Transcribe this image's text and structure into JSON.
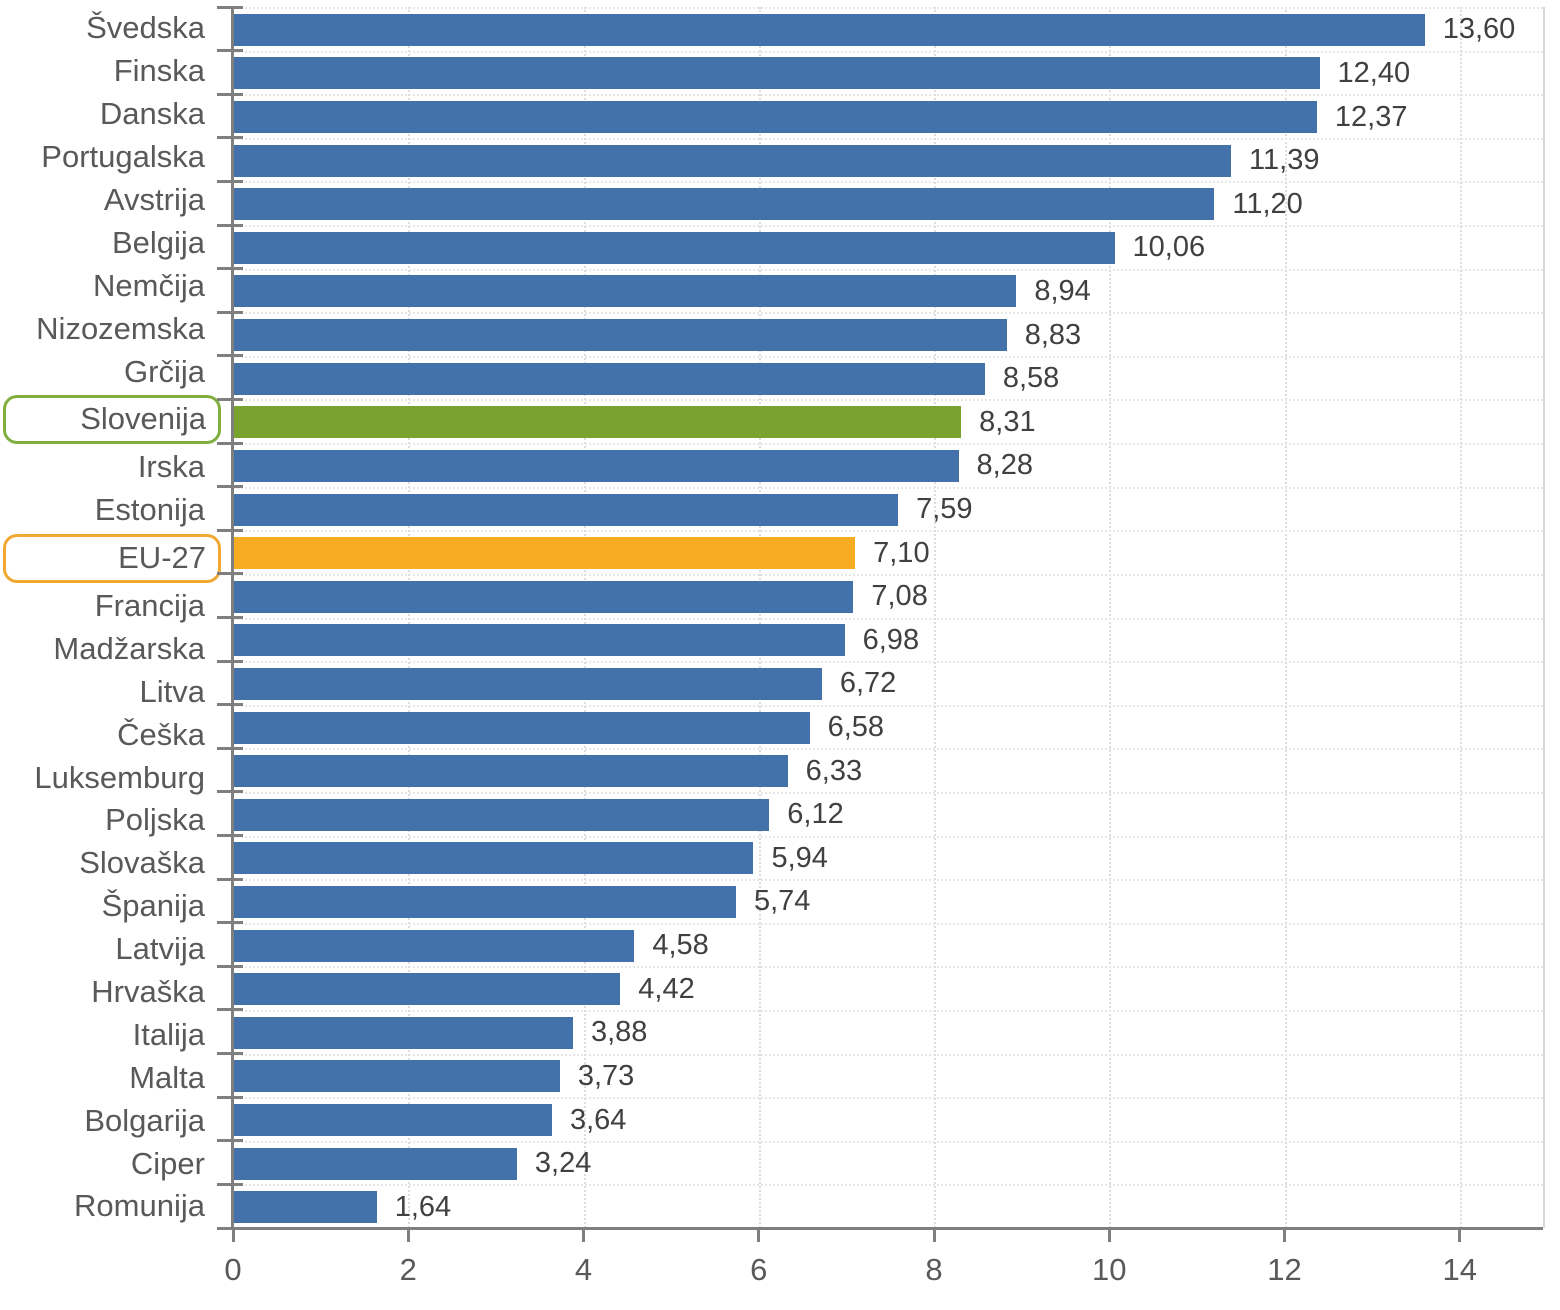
{
  "chart_data": {
    "type": "bar",
    "orientation": "horizontal",
    "title": "",
    "xlabel": "",
    "ylabel": "",
    "categories": [
      "Švedska",
      "Finska",
      "Danska",
      "Portugalska",
      "Avstrija",
      "Belgija",
      "Nemčija",
      "Nizozemska",
      "Grčija",
      "Slovenija",
      "Irska",
      "Estonija",
      "EU-27",
      "Francija",
      "Madžarska",
      "Litva",
      "Češka",
      "Luksemburg",
      "Poljska",
      "Slovaška",
      "Španija",
      "Latvija",
      "Hrvaška",
      "Italija",
      "Malta",
      "Bolgarija",
      "Ciper",
      "Romunija"
    ],
    "values": [
      13.6,
      12.4,
      12.37,
      11.39,
      11.2,
      10.06,
      8.94,
      8.83,
      8.58,
      8.31,
      8.28,
      7.59,
      7.1,
      7.08,
      6.98,
      6.72,
      6.58,
      6.33,
      6.12,
      5.94,
      5.74,
      4.58,
      4.42,
      3.88,
      3.73,
      3.64,
      3.24,
      1.64
    ],
    "value_labels": [
      "13,60",
      "12,40",
      "12,37",
      "11,39",
      "11,20",
      "10,06",
      "8,94",
      "8,83",
      "8,58",
      "8,31",
      "8,28",
      "7,59",
      "7,10",
      "7,08",
      "6,98",
      "6,72",
      "6,58",
      "6,33",
      "6,12",
      "5,94",
      "5,74",
      "4,58",
      "4,42",
      "3,88",
      "3,73",
      "3,64",
      "3,24",
      "1,64"
    ],
    "xlim": [
      0,
      14.95
    ],
    "x_ticks": [
      "0",
      "2",
      "4",
      "6",
      "8",
      "10",
      "12",
      "14"
    ],
    "grid": true,
    "legend": "none",
    "bar_color_default": "#4272A9",
    "highlights": [
      {
        "category": "Slovenija",
        "bar_color": "#7AA22F",
        "box_border_color": "#7FAF3F"
      },
      {
        "category": "EU-27",
        "bar_color": "#F6AD21",
        "box_border_color": "#F0A830"
      }
    ]
  },
  "colors": {
    "axis": "#7F7F7F",
    "gridline_vertical": "#DCDCDC",
    "gridline_horizontal": "#E6E6E6",
    "category_text": "#595959",
    "value_text": "#404040",
    "background": "#FFFFFF"
  }
}
